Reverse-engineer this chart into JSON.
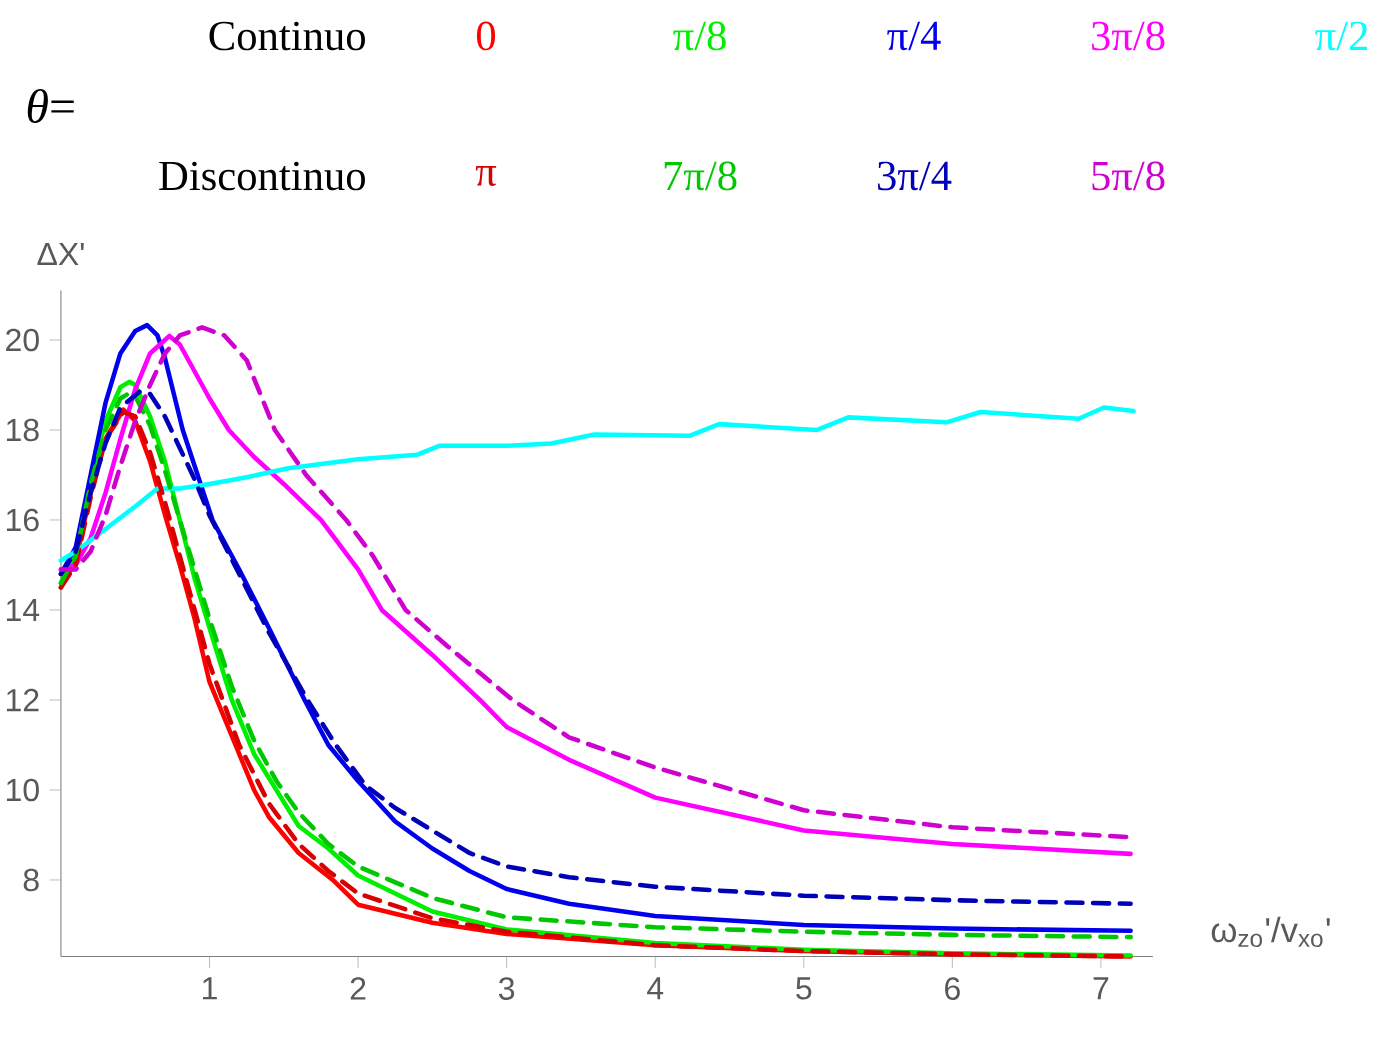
{
  "chart_data": {
    "type": "line",
    "legend": "top",
    "legend_title": "*θ*=",
    "annotations": [
      "Continuo",
      "Discontinuo"
    ],
    "xlabel": "ω$_{zo}$'/v$_{xo}$'",
    "ylabel": "ΔX'",
    "xlim": [
      0,
      7.35
    ],
    "ylim": [
      6.3,
      21.1
    ],
    "xticks": [
      1,
      2,
      3,
      4,
      5,
      6,
      7
    ],
    "yticks": [
      8,
      10,
      12,
      14,
      16,
      18,
      20
    ],
    "grid": false,
    "series": [
      {
        "name": "0",
        "color": "#ff0000",
        "line_style": "solid",
        "x": [
          0,
          0.1,
          0.2,
          0.3,
          0.42,
          0.5,
          0.6,
          0.71,
          0.8,
          0.9,
          1.0,
          1.2,
          1.3,
          1.4,
          1.6,
          1.83,
          2.0,
          2.5,
          3,
          4,
          5,
          6,
          7.2
        ],
        "values": [
          14.5,
          15.1,
          16.6,
          17.8,
          18.45,
          18.2,
          17.3,
          16.0,
          15.0,
          13.8,
          12.4,
          10.8,
          10.0,
          9.4,
          8.6,
          8.0,
          7.45,
          7.05,
          6.8,
          6.55,
          6.42,
          6.35,
          6.3
        ]
      },
      {
        "name": "π/8",
        "color": "#00ee00",
        "line_style": "solid",
        "x": [
          0,
          0.1,
          0.2,
          0.3,
          0.4,
          0.46,
          0.5,
          0.6,
          0.7,
          0.8,
          0.9,
          1.0,
          1.15,
          1.3,
          1.45,
          1.6,
          1.8,
          2.0,
          2.5,
          3,
          4,
          5,
          6,
          7.2
        ],
        "values": [
          14.6,
          15.3,
          16.9,
          18.2,
          18.95,
          19.07,
          19.0,
          18.3,
          17.3,
          16.0,
          14.7,
          13.6,
          12.0,
          10.8,
          10.0,
          9.2,
          8.7,
          8.1,
          7.3,
          6.9,
          6.6,
          6.45,
          6.37,
          6.32
        ]
      },
      {
        "name": "π/4",
        "color": "#0000ee",
        "line_style": "solid",
        "x": [
          0,
          0.1,
          0.2,
          0.3,
          0.4,
          0.5,
          0.58,
          0.65,
          0.7,
          0.82,
          0.9,
          1.02,
          1.2,
          1.4,
          1.64,
          1.8,
          2.0,
          2.25,
          2.5,
          2.75,
          3,
          3.42,
          4,
          5,
          6,
          7.2
        ],
        "values": [
          14.8,
          15.4,
          17.0,
          18.6,
          19.7,
          20.2,
          20.33,
          20.1,
          19.6,
          18.0,
          17.2,
          16.0,
          14.9,
          13.6,
          12.0,
          11.0,
          10.2,
          9.3,
          8.7,
          8.2,
          7.8,
          7.47,
          7.2,
          7.0,
          6.92,
          6.87
        ]
      },
      {
        "name": "3π/8",
        "color": "#ff00ff",
        "line_style": "solid",
        "x": [
          0,
          0.1,
          0.2,
          0.3,
          0.4,
          0.5,
          0.6,
          0.73,
          0.8,
          0.9,
          1.0,
          1.13,
          1.3,
          1.5,
          1.75,
          2.0,
          2.16,
          2.5,
          2.82,
          3.0,
          3.42,
          4,
          5,
          6,
          7.2
        ],
        "values": [
          14.9,
          15.0,
          15.6,
          16.6,
          17.8,
          18.9,
          19.7,
          20.09,
          19.9,
          19.3,
          18.7,
          18.0,
          17.4,
          16.8,
          16.0,
          14.9,
          14.0,
          13.0,
          12.0,
          11.4,
          10.67,
          9.83,
          9.1,
          8.8,
          8.58
        ]
      },
      {
        "name": "π/2",
        "color": "#00ffff",
        "line_style": "solid",
        "x": [
          0,
          0.1,
          0.3,
          0.5,
          0.65,
          0.8,
          1.0,
          1.25,
          1.53,
          2.0,
          2.4,
          2.55,
          3.0,
          3.3,
          3.59,
          4.23,
          4.43,
          5.09,
          5.3,
          5.96,
          6.19,
          6.85,
          7.02,
          7.22
        ],
        "values": [
          15.1,
          15.3,
          15.8,
          16.3,
          16.7,
          16.7,
          16.8,
          16.95,
          17.15,
          17.35,
          17.45,
          17.65,
          17.65,
          17.7,
          17.9,
          17.87,
          18.13,
          18.0,
          18.28,
          18.17,
          18.4,
          18.25,
          18.5,
          18.42
        ]
      },
      {
        "name": "π",
        "color": "#d80000",
        "line_style": "dashed",
        "x": [
          0,
          0.1,
          0.2,
          0.3,
          0.42,
          0.5,
          0.6,
          0.7,
          0.8,
          0.9,
          1.0,
          1.2,
          1.4,
          1.6,
          1.8,
          2.0,
          2.5,
          3,
          4,
          5,
          6,
          7.2
        ],
        "values": [
          14.5,
          15.0,
          16.5,
          17.8,
          18.4,
          18.3,
          17.5,
          16.4,
          15.2,
          14.0,
          12.8,
          11.0,
          9.7,
          8.8,
          8.2,
          7.7,
          7.15,
          6.85,
          6.55,
          6.42,
          6.35,
          6.3
        ]
      },
      {
        "name": "7π/8",
        "color": "#00c800",
        "line_style": "dashed",
        "x": [
          0,
          0.1,
          0.2,
          0.3,
          0.4,
          0.45,
          0.5,
          0.6,
          0.7,
          0.8,
          0.9,
          1.0,
          1.15,
          1.3,
          1.45,
          1.6,
          1.8,
          2.0,
          2.5,
          3,
          4,
          5,
          6,
          7.2
        ],
        "values": [
          14.6,
          15.2,
          16.8,
          18.0,
          18.7,
          18.8,
          18.75,
          18.1,
          17.1,
          16.0,
          14.9,
          13.8,
          12.3,
          11.1,
          10.2,
          9.5,
          8.8,
          8.3,
          7.6,
          7.17,
          6.95,
          6.85,
          6.78,
          6.73
        ]
      },
      {
        "name": "3π/4",
        "color": "#0000b8",
        "line_style": "dashed",
        "x": [
          0,
          0.1,
          0.2,
          0.3,
          0.4,
          0.53,
          0.6,
          0.7,
          0.8,
          0.9,
          1.0,
          1.2,
          1.4,
          1.66,
          1.85,
          2.05,
          2.25,
          2.5,
          2.75,
          3,
          3.42,
          4,
          5,
          6,
          7.2
        ],
        "values": [
          14.8,
          15.3,
          16.6,
          17.7,
          18.5,
          18.85,
          18.8,
          18.3,
          17.6,
          16.9,
          16.1,
          14.8,
          13.5,
          12.0,
          11.0,
          10.1,
          9.6,
          9.1,
          8.6,
          8.3,
          8.06,
          7.85,
          7.65,
          7.55,
          7.47
        ]
      },
      {
        "name": "5π/8",
        "color": "#d000d0",
        "line_style": "dashed",
        "x": [
          0,
          0.1,
          0.2,
          0.3,
          0.4,
          0.5,
          0.6,
          0.7,
          0.8,
          0.95,
          1.1,
          1.25,
          1.44,
          1.65,
          1.92,
          2.1,
          2.32,
          2.6,
          3.04,
          3.42,
          4,
          5,
          6,
          7.2
        ],
        "values": [
          14.9,
          14.9,
          15.3,
          16.1,
          17.2,
          18.2,
          19.0,
          19.7,
          20.1,
          20.28,
          20.1,
          19.55,
          18.0,
          17.0,
          16.0,
          15.2,
          14.0,
          13.2,
          12.0,
          11.17,
          10.5,
          9.55,
          9.17,
          8.95
        ]
      }
    ]
  }
}
